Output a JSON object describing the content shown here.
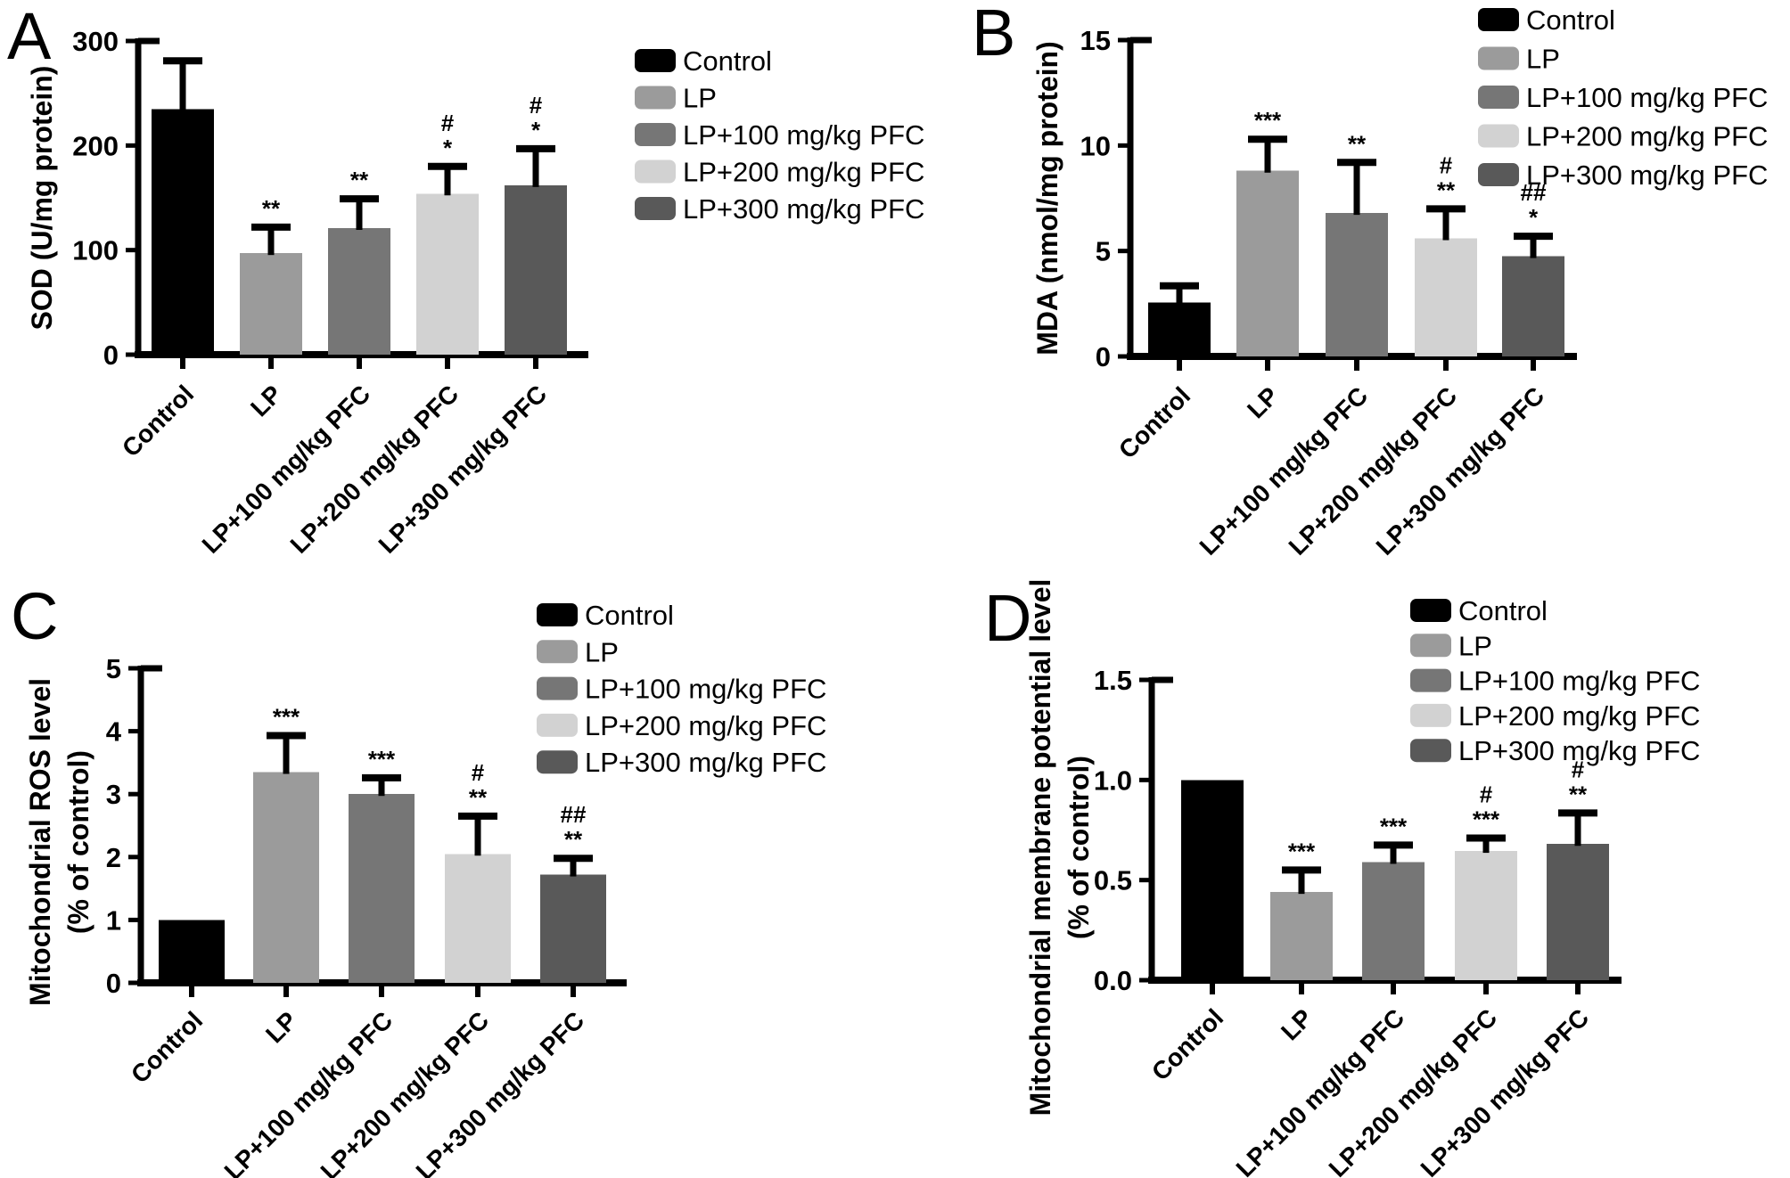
{
  "figure": {
    "background": "#ffffff",
    "panels": [
      "A",
      "B",
      "C",
      "D"
    ],
    "group_colors": [
      "#000000",
      "#9b9b9b",
      "#767676",
      "#d2d2d2",
      "#595959"
    ],
    "axis_color": "#000000"
  },
  "chart_data": [
    {
      "type": "bar",
      "panel": "A",
      "title": "",
      "ylabel": "SOD (U/mg protein)",
      "ylabel_line2": "",
      "xlabel": "",
      "categories": [
        "Control",
        "LP",
        "LP+100 mg/kg PFC",
        "LP+200 mg/kg PFC",
        "LP+300 mg/kg PFC"
      ],
      "values": [
        235,
        97,
        121,
        154,
        162
      ],
      "errors_up": [
        46,
        25,
        28,
        26,
        35
      ],
      "significance": [
        [],
        [
          "**"
        ],
        [
          "**"
        ],
        [
          "#",
          "*"
        ],
        [
          "#",
          "*"
        ]
      ],
      "ylim": [
        0,
        300
      ],
      "yticks": [
        0,
        100,
        200,
        300
      ],
      "ytick_labels": [
        "0",
        "100",
        "200",
        "300"
      ],
      "legend": [
        "Control",
        "LP",
        "LP+100 mg/kg PFC",
        "LP+200 mg/kg PFC",
        "LP+300 mg/kg PFC"
      ],
      "legend_position": "top-right",
      "grid": false
    },
    {
      "type": "bar",
      "panel": "B",
      "title": "",
      "ylabel": "MDA (nmol/mg protein)",
      "ylabel_line2": "",
      "xlabel": "",
      "categories": [
        "Control",
        "LP",
        "LP+100 mg/kg PFC",
        "LP+200 mg/kg PFC",
        "LP+300 mg/kg PFC"
      ],
      "values": [
        2.55,
        8.8,
        6.8,
        5.6,
        4.75
      ],
      "errors_up": [
        0.8,
        1.5,
        2.4,
        1.4,
        0.95
      ],
      "significance": [
        [],
        [
          "***"
        ],
        [
          "**"
        ],
        [
          "#",
          "**"
        ],
        [
          "##",
          "*"
        ]
      ],
      "ylim": [
        0,
        15
      ],
      "yticks": [
        0,
        5,
        10,
        15
      ],
      "ytick_labels": [
        "0",
        "5",
        "10",
        "15"
      ],
      "legend": [
        "Control",
        "LP",
        "LP+100 mg/kg PFC",
        "LP+200 mg/kg PFC",
        "LP+300 mg/kg PFC"
      ],
      "legend_position": "top-right",
      "grid": false
    },
    {
      "type": "bar",
      "panel": "C",
      "title": "",
      "ylabel": "Mitochondrial ROS level",
      "ylabel_line2": "(% of control)",
      "xlabel": "",
      "categories": [
        "Control",
        "LP",
        "LP+100 mg/kg PFC",
        "LP+200 mg/kg PFC",
        "LP+300 mg/kg PFC"
      ],
      "values": [
        1.0,
        3.35,
        3.0,
        2.05,
        1.72
      ],
      "errors_up": [
        0,
        0.58,
        0.26,
        0.6,
        0.26
      ],
      "significance": [
        [],
        [
          "***"
        ],
        [
          "***"
        ],
        [
          "#",
          "**"
        ],
        [
          "##",
          "**"
        ]
      ],
      "ylim": [
        0,
        5
      ],
      "yticks": [
        0,
        1,
        2,
        3,
        4,
        5
      ],
      "ytick_labels": [
        "0",
        "1",
        "2",
        "3",
        "4",
        "5"
      ],
      "legend": [
        "Control",
        "LP",
        "LP+100 mg/kg PFC",
        "LP+200 mg/kg PFC",
        "LP+300 mg/kg PFC"
      ],
      "legend_position": "top-right",
      "grid": false
    },
    {
      "type": "bar",
      "panel": "D",
      "title": "",
      "ylabel": "Mitochondrial membrane potential level",
      "ylabel_line2": "(% of control)",
      "xlabel": "",
      "categories": [
        "Control",
        "LP",
        "LP+100 mg/kg PFC",
        "LP+200 mg/kg PFC",
        "LP+300 mg/kg PFC"
      ],
      "values": [
        1.0,
        0.44,
        0.59,
        0.645,
        0.68
      ],
      "errors_up": [
        0,
        0.11,
        0.085,
        0.065,
        0.155
      ],
      "significance": [
        [],
        [
          "***"
        ],
        [
          "***"
        ],
        [
          "#",
          "***"
        ],
        [
          "#",
          "**"
        ]
      ],
      "ylim": [
        0,
        1.5
      ],
      "yticks": [
        0,
        0.5,
        1.0,
        1.5
      ],
      "ytick_labels": [
        "0.0",
        "0.5",
        "1.0",
        "1.5"
      ],
      "legend": [
        "Control",
        "LP",
        "LP+100 mg/kg PFC",
        "LP+200 mg/kg PFC",
        "LP+300 mg/kg PFC"
      ],
      "legend_position": "top-right",
      "grid": false
    }
  ]
}
